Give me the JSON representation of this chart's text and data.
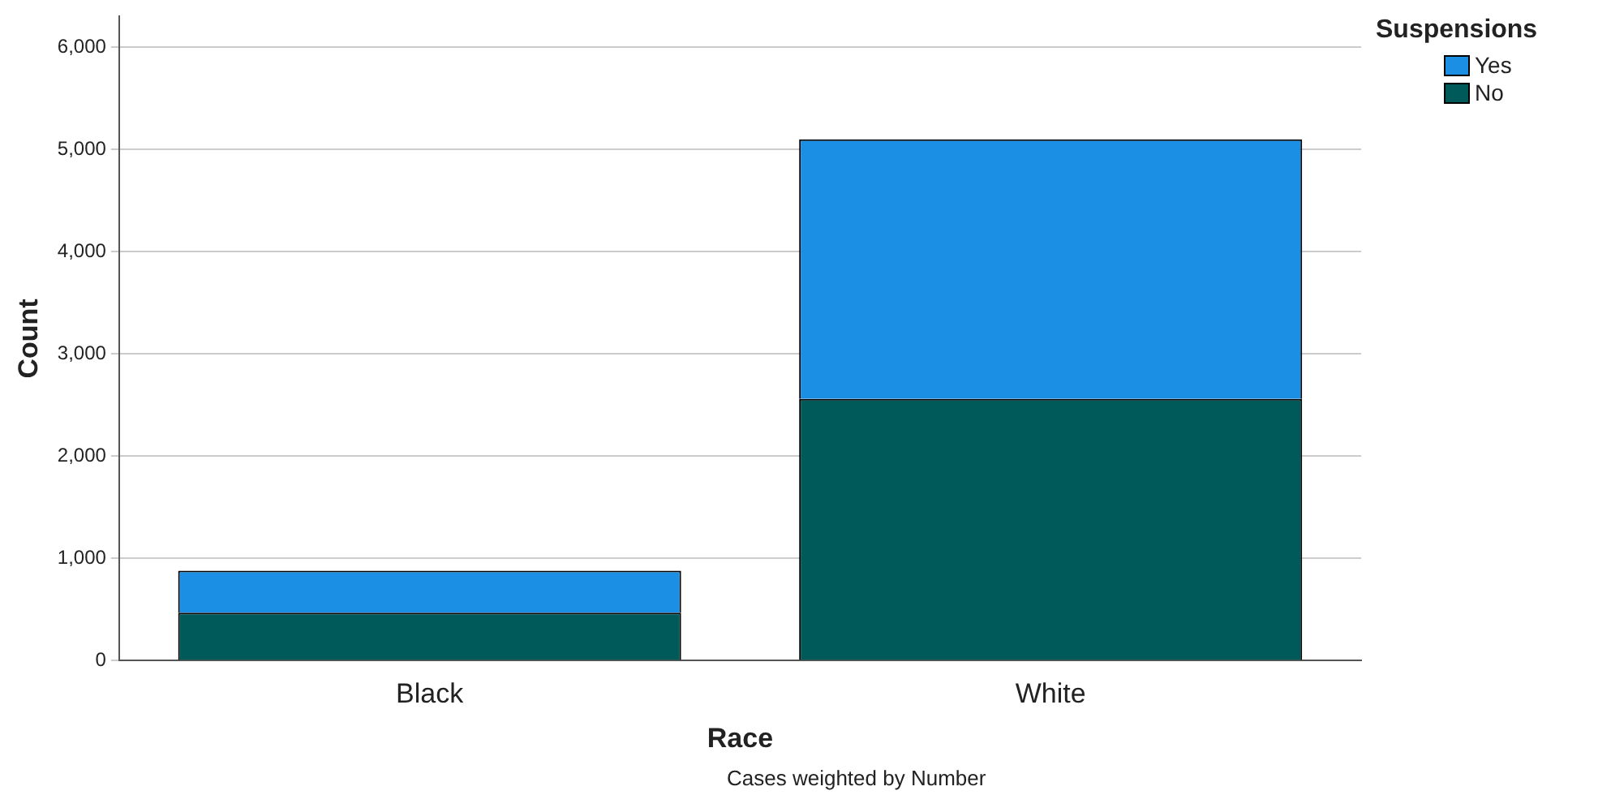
{
  "chart_data": {
    "type": "bar",
    "xlabel": "Race",
    "ylabel": "Count",
    "legend_title": "Suspensions",
    "categories": [
      "Black",
      "White"
    ],
    "series": [
      {
        "name": "No",
        "color": "#005a5a",
        "values": [
          470,
          2560
        ]
      },
      {
        "name": "Yes",
        "color": "#1a8fe3",
        "values": [
          410,
          2540
        ]
      }
    ],
    "stacked": true,
    "ylim": [
      0,
      6300
    ],
    "yticks": [
      {
        "value": 0,
        "label": "0"
      },
      {
        "value": 1000,
        "label": "1,000"
      },
      {
        "value": 2000,
        "label": "2,000"
      },
      {
        "value": 3000,
        "label": "3,000"
      },
      {
        "value": 4000,
        "label": "4,000"
      },
      {
        "value": 5000,
        "label": "5,000"
      },
      {
        "value": 6000,
        "label": "6,000"
      }
    ],
    "grid": "y",
    "legend": "top right",
    "annotations": [
      "Cases weighted by Number"
    ]
  }
}
